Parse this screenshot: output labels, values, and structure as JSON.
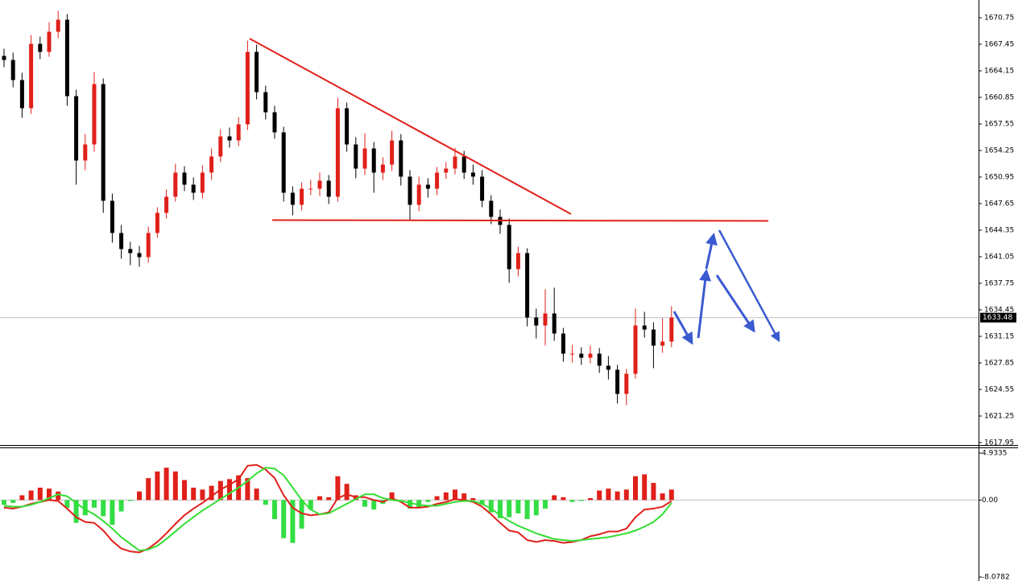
{
  "chart_data": [
    {
      "type": "candlestick",
      "open": [
        1666.0,
        1665.5,
        1663.0,
        1659.5,
        1667.5,
        1666.5,
        1669.0,
        1670.5,
        1661.0,
        1653.0,
        1655.0,
        1662.5,
        1648.0,
        1644.0,
        1642.0,
        1641.5,
        1641.0,
        1644.0,
        1646.5,
        1648.5,
        1651.5,
        1650.0,
        1649.0,
        1651.5,
        1653.5,
        1656.0,
        1655.5,
        1657.5,
        1666.5,
        1661.5,
        1659.0,
        1656.5,
        1649.0,
        1647.5,
        1649.5,
        1649.5,
        1650.5,
        1648.5,
        1659.5,
        1655.0,
        1652.0,
        1654.5,
        1651.5,
        1652.5,
        1655.5,
        1651.0,
        1647.5,
        1650.0,
        1649.5,
        1651.5,
        1652.0,
        1653.5,
        1651.5,
        1651.0,
        1648.0,
        1646.0,
        1645.0,
        1639.5,
        1641.5,
        1633.5,
        1632.5,
        1634.0,
        1631.5,
        1629.0,
        1629.0,
        1628.5,
        1629.0,
        1627.5,
        1627.0,
        1624.0,
        1626.5,
        1632.5,
        1632.0,
        1630.0,
        1630.5
      ],
      "high": [
        1666.9,
        1666.4,
        1663.9,
        1668.6,
        1668.4,
        1670.2,
        1671.6,
        1671.2,
        1661.8,
        1656.3,
        1664.0,
        1663.2,
        1648.9,
        1645.0,
        1642.9,
        1642.4,
        1644.8,
        1647.2,
        1649.4,
        1652.6,
        1652.3,
        1650.9,
        1652.4,
        1654.5,
        1656.9,
        1657.1,
        1658.4,
        1667.9,
        1667.4,
        1662.3,
        1659.8,
        1657.2,
        1649.8,
        1650.3,
        1650.6,
        1651.5,
        1651.2,
        1660.8,
        1660.2,
        1655.9,
        1656.4,
        1655.3,
        1653.4,
        1656.7,
        1656.3,
        1651.8,
        1651.0,
        1650.8,
        1652.2,
        1652.8,
        1654.6,
        1654.2,
        1652.5,
        1651.8,
        1648.7,
        1646.9,
        1645.8,
        1642.3,
        1642.1,
        1634.6,
        1637.0,
        1637.2,
        1632.2,
        1630.1,
        1629.8,
        1630.0,
        1629.7,
        1628.7,
        1627.6,
        1627.1,
        1634.6,
        1634.2,
        1632.9,
        1633.4,
        1634.9
      ],
      "low": [
        1664.6,
        1662.1,
        1658.3,
        1658.8,
        1665.6,
        1665.9,
        1668.2,
        1659.8,
        1650.0,
        1651.8,
        1654.1,
        1646.5,
        1642.8,
        1640.8,
        1640.0,
        1639.8,
        1640.3,
        1643.4,
        1645.8,
        1647.9,
        1649.2,
        1648.1,
        1648.3,
        1650.6,
        1652.8,
        1654.6,
        1654.8,
        1656.8,
        1660.6,
        1658.1,
        1655.7,
        1647.9,
        1646.2,
        1646.8,
        1648.7,
        1648.6,
        1647.6,
        1647.9,
        1654.1,
        1650.8,
        1651.2,
        1649.0,
        1650.6,
        1651.7,
        1649.9,
        1645.6,
        1646.7,
        1648.4,
        1648.7,
        1650.7,
        1651.3,
        1650.7,
        1650.0,
        1647.2,
        1645.1,
        1643.9,
        1637.8,
        1638.6,
        1632.4,
        1630.9,
        1630.0,
        1630.6,
        1628.0,
        1627.9,
        1627.6,
        1627.8,
        1626.6,
        1625.8,
        1622.8,
        1622.6,
        1625.9,
        1631.0,
        1627.2,
        1629.1,
        1629.8
      ],
      "close": [
        1665.5,
        1663.0,
        1659.5,
        1667.5,
        1666.5,
        1669.0,
        1670.5,
        1661.0,
        1653.0,
        1655.0,
        1662.5,
        1648.0,
        1644.0,
        1642.0,
        1641.5,
        1641.0,
        1644.0,
        1646.5,
        1648.5,
        1651.5,
        1650.0,
        1649.0,
        1651.5,
        1653.5,
        1656.0,
        1655.5,
        1657.5,
        1666.5,
        1661.5,
        1659.0,
        1656.5,
        1649.0,
        1647.5,
        1649.5,
        1649.5,
        1650.5,
        1648.5,
        1659.5,
        1655.0,
        1652.0,
        1654.5,
        1651.5,
        1652.5,
        1655.5,
        1651.0,
        1647.5,
        1650.0,
        1649.5,
        1651.5,
        1652.0,
        1653.5,
        1651.5,
        1651.0,
        1648.0,
        1646.0,
        1645.0,
        1639.5,
        1641.5,
        1633.5,
        1632.5,
        1634.0,
        1631.5,
        1629.0,
        1629.0,
        1628.5,
        1629.0,
        1627.5,
        1627.0,
        1624.0,
        1626.5,
        1632.5,
        1632.0,
        1630.0,
        1630.5,
        1633.5
      ],
      "up_color": "#e0201a",
      "down_color": "#000000",
      "ylim": [
        1617.45,
        1672.95
      ],
      "yticks": [
        1617.95,
        1621.25,
        1624.55,
        1627.85,
        1631.15,
        1634.45,
        1637.75,
        1641.05,
        1644.35,
        1647.65,
        1650.95,
        1654.25,
        1657.55,
        1660.85,
        1664.15,
        1667.45,
        1670.75
      ],
      "current_price": 1633.48
    },
    {
      "type": "macd",
      "histogram": {
        "values": [
          -0.5,
          -0.3,
          0.5,
          1.0,
          1.3,
          1.2,
          0.9,
          -0.8,
          -2.4,
          -1.6,
          -0.8,
          -1.7,
          -2.6,
          -1.2,
          -0.1,
          0.9,
          2.3,
          3.0,
          3.4,
          3.0,
          2.1,
          1.3,
          1.1,
          1.5,
          2.0,
          2.2,
          2.6,
          2.3,
          1.2,
          -0.5,
          -2.0,
          -4.0,
          -4.5,
          -3.0,
          -1.0,
          0.4,
          0.3,
          2.5,
          1.7,
          0.5,
          -0.7,
          -1.0,
          -0.4,
          0.8,
          -0.2,
          -0.9,
          -0.8,
          -0.2,
          0.4,
          0.8,
          1.1,
          0.7,
          0.2,
          -0.5,
          -1.3,
          -1.9,
          -1.8,
          -1.4,
          -2.0,
          -1.6,
          -0.9,
          0.5,
          0.3,
          -0.2,
          -0.1,
          0.2,
          1.0,
          1.2,
          0.9,
          1.1,
          2.5,
          2.7,
          1.8,
          0.7,
          1.1
        ],
        "up_color": "#e0201a",
        "down_color": "#33dd44"
      },
      "series": [
        {
          "color": "#e0201a",
          "values": [
            -0.8,
            -0.9,
            -0.7,
            -0.4,
            -0.2,
            0.0,
            -0.1,
            -0.9,
            -1.8,
            -2.3,
            -2.4,
            -3.2,
            -4.3,
            -5.1,
            -5.4,
            -5.5,
            -5.1,
            -4.4,
            -3.5,
            -2.5,
            -1.6,
            -0.9,
            -0.3,
            0.4,
            1.1,
            1.6,
            2.2,
            3.6,
            3.7,
            3.2,
            2.3,
            0.5,
            -0.8,
            -1.4,
            -1.6,
            -1.5,
            -1.3,
            0.2,
            0.6,
            0.3,
            0.3,
            0.0,
            -0.2,
            0.2,
            -0.2,
            -0.8,
            -0.8,
            -0.7,
            -0.4,
            -0.2,
            0.1,
            0.0,
            -0.2,
            -0.7,
            -1.5,
            -2.4,
            -3.2,
            -3.4,
            -4.2,
            -4.4,
            -4.2,
            -4.3,
            -4.5,
            -4.4,
            -4.2,
            -3.8,
            -3.6,
            -3.3,
            -3.3,
            -3.0,
            -1.8,
            -1.0,
            -0.9,
            -0.7,
            -0.1
          ]
        },
        {
          "color": "#33dd33",
          "values": [
            -0.6,
            -0.7,
            -0.7,
            -0.5,
            -0.2,
            0.2,
            0.6,
            0.4,
            -0.3,
            -1.0,
            -1.5,
            -2.2,
            -3.0,
            -3.9,
            -4.6,
            -5.3,
            -5.2,
            -4.8,
            -4.1,
            -3.3,
            -2.5,
            -1.8,
            -1.1,
            -0.5,
            0.1,
            0.7,
            1.3,
            2.0,
            2.8,
            3.4,
            3.3,
            2.6,
            1.3,
            0.0,
            -1.0,
            -1.5,
            -1.4,
            -0.9,
            -0.4,
            0.1,
            0.6,
            0.6,
            0.2,
            0.0,
            -0.1,
            -0.3,
            -0.5,
            -0.6,
            -0.6,
            -0.4,
            -0.2,
            -0.1,
            -0.1,
            -0.4,
            -0.9,
            -1.6,
            -2.2,
            -2.7,
            -3.1,
            -3.5,
            -3.8,
            -4.1,
            -4.2,
            -4.3,
            -4.2,
            -4.1,
            -4.0,
            -3.9,
            -3.7,
            -3.5,
            -3.2,
            -2.8,
            -2.3,
            -1.5,
            -0.3
          ]
        }
      ],
      "ylim": [
        -8.0782,
        4.9335
      ],
      "yticks": [
        4.9335,
        {
          "value": 0,
          "label": "0.00"
        },
        -8.0782
      ]
    }
  ]
}
